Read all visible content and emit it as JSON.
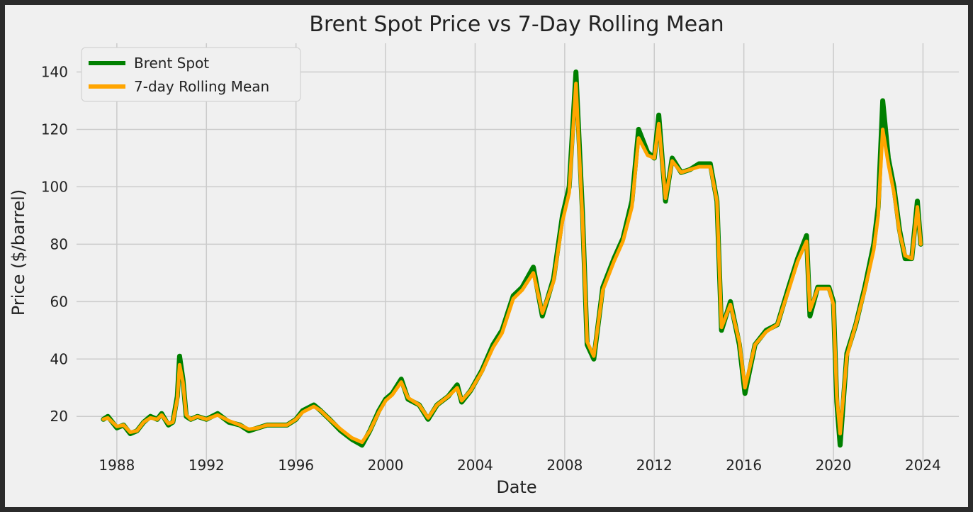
{
  "chart_data": {
    "type": "line",
    "title": "Brent Spot Price vs 7-Day Rolling Mean",
    "xlabel": "Date",
    "ylabel": "Price ($/barrel)",
    "xlim": [
      1986.2,
      2025.6
    ],
    "ylim": [
      4,
      150
    ],
    "x_ticks": [
      1988,
      1992,
      1996,
      2000,
      2004,
      2008,
      2012,
      2016,
      2020,
      2024
    ],
    "x_tick_labels": [
      "1988",
      "1992",
      "1996",
      "2000",
      "2004",
      "2008",
      "2012",
      "2016",
      "2020",
      "2024"
    ],
    "y_ticks": [
      20,
      40,
      60,
      80,
      100,
      120,
      140
    ],
    "y_tick_labels": [
      "20",
      "40",
      "60",
      "80",
      "100",
      "120",
      "140"
    ],
    "grid": true,
    "legend_position": "upper-left",
    "series": [
      {
        "name": "Brent Spot",
        "color": "#008000",
        "x": [
          1987.4,
          1987.6,
          1987.8,
          1988.0,
          1988.3,
          1988.6,
          1988.9,
          1989.2,
          1989.5,
          1989.8,
          1990.0,
          1990.3,
          1990.5,
          1990.7,
          1990.8,
          1990.95,
          1991.1,
          1991.3,
          1991.6,
          1992.0,
          1992.5,
          1993.0,
          1993.5,
          1993.9,
          1994.3,
          1994.7,
          1995.2,
          1995.6,
          1996.0,
          1996.3,
          1996.8,
          1997.1,
          1997.5,
          1998.0,
          1998.5,
          1998.95,
          1999.3,
          1999.7,
          2000.0,
          2000.3,
          2000.7,
          2001.0,
          2001.5,
          2001.9,
          2002.3,
          2002.8,
          2003.2,
          2003.4,
          2003.8,
          2004.3,
          2004.8,
          2005.2,
          2005.7,
          2006.1,
          2006.6,
          2007.0,
          2007.5,
          2007.9,
          2008.2,
          2008.5,
          2008.8,
          2009.0,
          2009.3,
          2009.7,
          2010.2,
          2010.6,
          2011.0,
          2011.3,
          2011.7,
          2012.0,
          2012.2,
          2012.5,
          2012.8,
          2013.2,
          2013.6,
          2014.0,
          2014.5,
          2014.8,
          2015.0,
          2015.4,
          2015.8,
          2016.05,
          2016.5,
          2017.0,
          2017.5,
          2018.0,
          2018.4,
          2018.8,
          2018.95,
          2019.3,
          2019.8,
          2020.0,
          2020.15,
          2020.3,
          2020.6,
          2021.0,
          2021.4,
          2021.8,
          2022.0,
          2022.2,
          2022.45,
          2022.7,
          2022.95,
          2023.2,
          2023.5,
          2023.75,
          2023.9
        ],
        "y": [
          19,
          20,
          18,
          16,
          17,
          14,
          15,
          18,
          20,
          19,
          21,
          17,
          18,
          27,
          41,
          33,
          20,
          19,
          20,
          19,
          21,
          18,
          17,
          15,
          16,
          17,
          17,
          17,
          19,
          22,
          24,
          22,
          19,
          15,
          12,
          10,
          15,
          22,
          26,
          28,
          33,
          26,
          24,
          19,
          24,
          27,
          31,
          25,
          29,
          36,
          45,
          50,
          62,
          65,
          72,
          55,
          68,
          90,
          100,
          140,
          90,
          45,
          40,
          65,
          75,
          82,
          95,
          120,
          112,
          110,
          125,
          95,
          110,
          105,
          106,
          108,
          108,
          95,
          50,
          60,
          45,
          28,
          45,
          50,
          52,
          65,
          75,
          83,
          55,
          65,
          65,
          60,
          25,
          10,
          42,
          52,
          65,
          80,
          93,
          130,
          110,
          100,
          85,
          75,
          75,
          95,
          80
        ]
      },
      {
        "name": "7-day Rolling Mean",
        "color": "#ffa500",
        "x": [
          1987.4,
          1987.6,
          1987.8,
          1988.0,
          1988.3,
          1988.6,
          1988.9,
          1989.2,
          1989.5,
          1989.8,
          1990.0,
          1990.3,
          1990.5,
          1990.7,
          1990.8,
          1990.95,
          1991.1,
          1991.3,
          1991.6,
          1992.0,
          1992.5,
          1993.0,
          1993.5,
          1993.9,
          1994.3,
          1994.7,
          1995.2,
          1995.6,
          1996.0,
          1996.3,
          1996.8,
          1997.1,
          1997.5,
          1998.0,
          1998.5,
          1998.95,
          1999.3,
          1999.7,
          2000.0,
          2000.3,
          2000.7,
          2001.0,
          2001.5,
          2001.9,
          2002.3,
          2002.8,
          2003.2,
          2003.4,
          2003.8,
          2004.3,
          2004.8,
          2005.2,
          2005.7,
          2006.1,
          2006.6,
          2007.0,
          2007.5,
          2007.9,
          2008.2,
          2008.5,
          2008.8,
          2009.0,
          2009.3,
          2009.7,
          2010.2,
          2010.6,
          2011.0,
          2011.3,
          2011.7,
          2012.0,
          2012.2,
          2012.5,
          2012.8,
          2013.2,
          2013.6,
          2014.0,
          2014.5,
          2014.8,
          2015.0,
          2015.4,
          2015.8,
          2016.05,
          2016.5,
          2017.0,
          2017.5,
          2018.0,
          2018.4,
          2018.8,
          2018.95,
          2019.3,
          2019.8,
          2020.0,
          2020.15,
          2020.3,
          2020.6,
          2021.0,
          2021.4,
          2021.8,
          2022.0,
          2022.2,
          2022.45,
          2022.7,
          2022.95,
          2023.2,
          2023.5,
          2023.75,
          2023.9
        ],
        "y": [
          19,
          19.5,
          18,
          16.5,
          17,
          14.5,
          15,
          18,
          19.5,
          19,
          20.5,
          17.5,
          18,
          26,
          38,
          32,
          20.5,
          19,
          20,
          19,
          20.5,
          18.5,
          17,
          15.5,
          16,
          17,
          17,
          17,
          19,
          21.5,
          23.5,
          22,
          19,
          15.5,
          12.5,
          11,
          15,
          21.5,
          25.5,
          27.5,
          32,
          26.5,
          24,
          19.5,
          24,
          27,
          30,
          25.5,
          29,
          35.5,
          44,
          49,
          61,
          64,
          70,
          56,
          67,
          88,
          98,
          136,
          88,
          46,
          41,
          64,
          74,
          81,
          93,
          117,
          111,
          110,
          122,
          96,
          109,
          105,
          106,
          107,
          107,
          95,
          51,
          59,
          46,
          30,
          45,
          49.5,
          52,
          64,
          74,
          81,
          57,
          64.5,
          64.5,
          59,
          27,
          14,
          41,
          52,
          64,
          78,
          90,
          120,
          108,
          98,
          84,
          76,
          75,
          93,
          80
        ]
      }
    ]
  }
}
